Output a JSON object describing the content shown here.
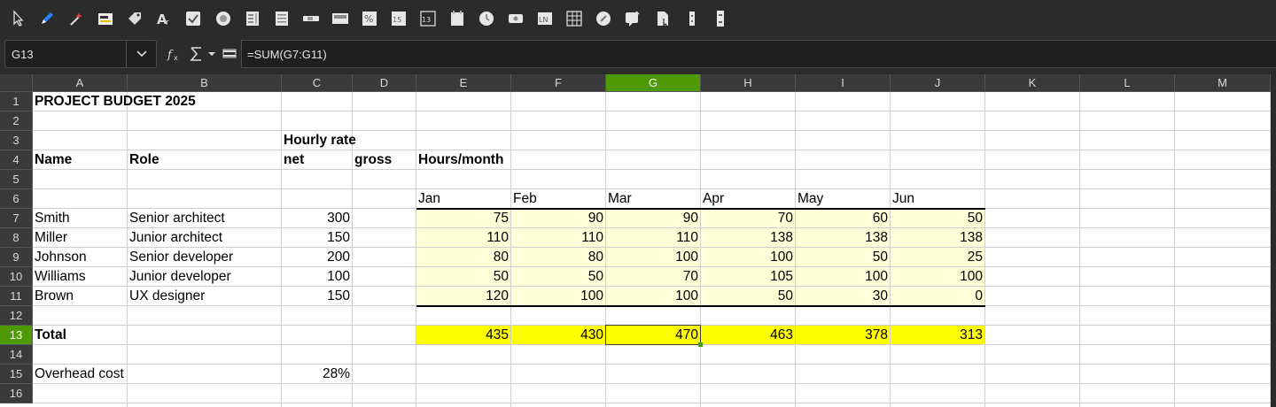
{
  "toolbar": {
    "icons": [
      "select-pointer-icon",
      "pen-icon",
      "magic-wand-icon",
      "form-control-icon",
      "tag-icon",
      "fontwork-icon",
      "checkbox-icon",
      "radio-button-icon",
      "list-box-icon",
      "combo-box-icon",
      "scrollbar-icon",
      "group-box-icon",
      "percent-field-icon",
      "numeric-field-icon",
      "formatted-field-icon",
      "date-field-icon",
      "time-field-icon",
      "image-button-icon",
      "label-field-icon",
      "table-control-icon",
      "navigation-bar-icon",
      "image-control-icon",
      "file-selection-icon",
      "spin-button-icon",
      "more-controls-icon"
    ]
  },
  "formula_bar": {
    "name_box": "G13",
    "formula": "=SUM(G7:G11)"
  },
  "columns": [
    "A",
    "B",
    "C",
    "D",
    "E",
    "F",
    "G",
    "H",
    "I",
    "J",
    "K",
    "L",
    "M"
  ],
  "selected_column": "G",
  "rows": [
    "1",
    "2",
    "3",
    "4",
    "5",
    "6",
    "7",
    "8",
    "9",
    "10",
    "11",
    "12",
    "13",
    "14",
    "15",
    "16"
  ],
  "selected_row": "13",
  "sheet": {
    "title": "PROJECT BUDGET 2025",
    "hourly_rate_label": "Hourly rate",
    "name_header": "Name",
    "role_header": "Role",
    "net_header": "net",
    "gross_header": "gross",
    "hours_header": "Hours/month",
    "months": [
      "Jan",
      "Feb",
      "Mar",
      "Apr",
      "May",
      "Jun"
    ],
    "people": [
      {
        "name": "Smith",
        "role": "Senior architect",
        "rate": "300",
        "hours": [
          "75",
          "90",
          "90",
          "70",
          "60",
          "50"
        ]
      },
      {
        "name": "Miller",
        "role": "Junior architect",
        "rate": "150",
        "hours": [
          "110",
          "110",
          "110",
          "138",
          "138",
          "138"
        ]
      },
      {
        "name": "Johnson",
        "role": "Senior developer",
        "rate": "200",
        "hours": [
          "80",
          "80",
          "100",
          "100",
          "50",
          "25"
        ]
      },
      {
        "name": "Williams",
        "role": "Junior developer",
        "rate": "100",
        "hours": [
          "50",
          "50",
          "70",
          "105",
          "100",
          "100"
        ]
      },
      {
        "name": "Brown",
        "role": "UX designer",
        "rate": "150",
        "hours": [
          "120",
          "100",
          "100",
          "50",
          "30",
          "0"
        ]
      }
    ],
    "total_label": "Total",
    "totals": [
      "435",
      "430",
      "470",
      "463",
      "378",
      "313"
    ],
    "overhead_label": "Overhead cost",
    "overhead_value": "28%"
  },
  "colors": {
    "selection_accent": "#4e9a06",
    "input_fill": "#ffffd7",
    "total_fill": "#ffff00"
  }
}
